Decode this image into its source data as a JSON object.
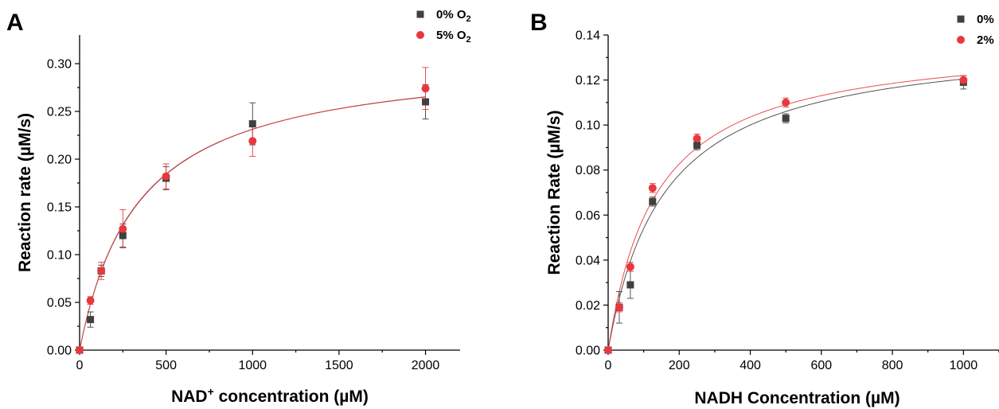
{
  "chart_data": [
    {
      "type": "scatter",
      "panel_label": "A",
      "xlabel_main": "NAD",
      "xlabel_sup": "+",
      "xlabel_rest": " concentration (µM)",
      "ylabel": "Reaction rate (µM/s)",
      "xlim": [
        0,
        2200
      ],
      "ylim": [
        0,
        0.33
      ],
      "xticks": [
        0,
        500,
        1000,
        1500,
        2000
      ],
      "xtick_labels": [
        "0",
        "500",
        "1000",
        "1500",
        "2000"
      ],
      "yticks": [
        0,
        0.05,
        0.1,
        0.15,
        0.2,
        0.25,
        0.3
      ],
      "ytick_labels": [
        "0.00",
        "0.05",
        "0.10",
        "0.15",
        "0.20",
        "0.25",
        "0.30"
      ],
      "legend_position": "top-right",
      "series": [
        {
          "name_main": "0% O",
          "name_sub": "2",
          "color": "#404040",
          "marker": "square",
          "x": [
            0,
            62.5,
            125,
            250,
            500,
            1000,
            2000
          ],
          "y": [
            0.0,
            0.032,
            0.083,
            0.12,
            0.18,
            0.237,
            0.26
          ],
          "err": [
            0,
            0.008,
            0.006,
            0.012,
            0.012,
            0.022,
            0.018
          ],
          "fit": {
            "vmax": 0.311,
            "km": 345
          }
        },
        {
          "name_main": "5% O",
          "name_sub": "2",
          "color": "#e8383d",
          "marker": "circle",
          "x": [
            0,
            62.5,
            125,
            250,
            500,
            1000,
            2000
          ],
          "y": [
            0.0,
            0.052,
            0.083,
            0.127,
            0.182,
            0.219,
            0.274
          ],
          "err": [
            0,
            0.004,
            0.009,
            0.02,
            0.013,
            0.016,
            0.022
          ],
          "fit": {
            "vmax": 0.31,
            "km": 340
          }
        }
      ]
    },
    {
      "type": "scatter",
      "panel_label": "B",
      "xlabel_main": "NADH Concentration (µM)",
      "xlabel_sup": "",
      "xlabel_rest": "",
      "ylabel": "Reaction Rate (µM/s)",
      "xlim": [
        0,
        1100
      ],
      "ylim": [
        0,
        0.14
      ],
      "xticks": [
        0,
        200,
        400,
        600,
        800,
        1000
      ],
      "xtick_labels": [
        "0",
        "200",
        "400",
        "600",
        "800",
        "1000"
      ],
      "yticks": [
        0,
        0.02,
        0.04,
        0.06,
        0.08,
        0.1,
        0.12,
        0.14
      ],
      "ytick_labels": [
        "0.00",
        "0.02",
        "0.04",
        "0.06",
        "0.08",
        "0.10",
        "0.12",
        "0.14"
      ],
      "legend_position": "top-right",
      "series": [
        {
          "name_main": "0%",
          "name_sub": "",
          "color": "#404040",
          "marker": "square",
          "x": [
            0,
            31.25,
            62.5,
            125,
            250,
            500,
            1000
          ],
          "y": [
            0.0,
            0.019,
            0.029,
            0.066,
            0.091,
            0.103,
            0.119
          ],
          "err": [
            0,
            0.007,
            0.006,
            0.002,
            0.002,
            0.002,
            0.003
          ],
          "fit": {
            "vmax": 0.1395,
            "km": 158
          }
        },
        {
          "name_main": "2%",
          "name_sub": "",
          "color": "#e8383d",
          "marker": "circle",
          "x": [
            0,
            31.25,
            62.5,
            125,
            250,
            500,
            1000
          ],
          "y": [
            0.0,
            0.019,
            0.037,
            0.072,
            0.094,
            0.11,
            0.12
          ],
          "err": [
            0,
            0.002,
            0.002,
            0.002,
            0.002,
            0.002,
            0.002
          ],
          "fit": {
            "vmax": 0.1385,
            "km": 135
          }
        }
      ]
    }
  ]
}
